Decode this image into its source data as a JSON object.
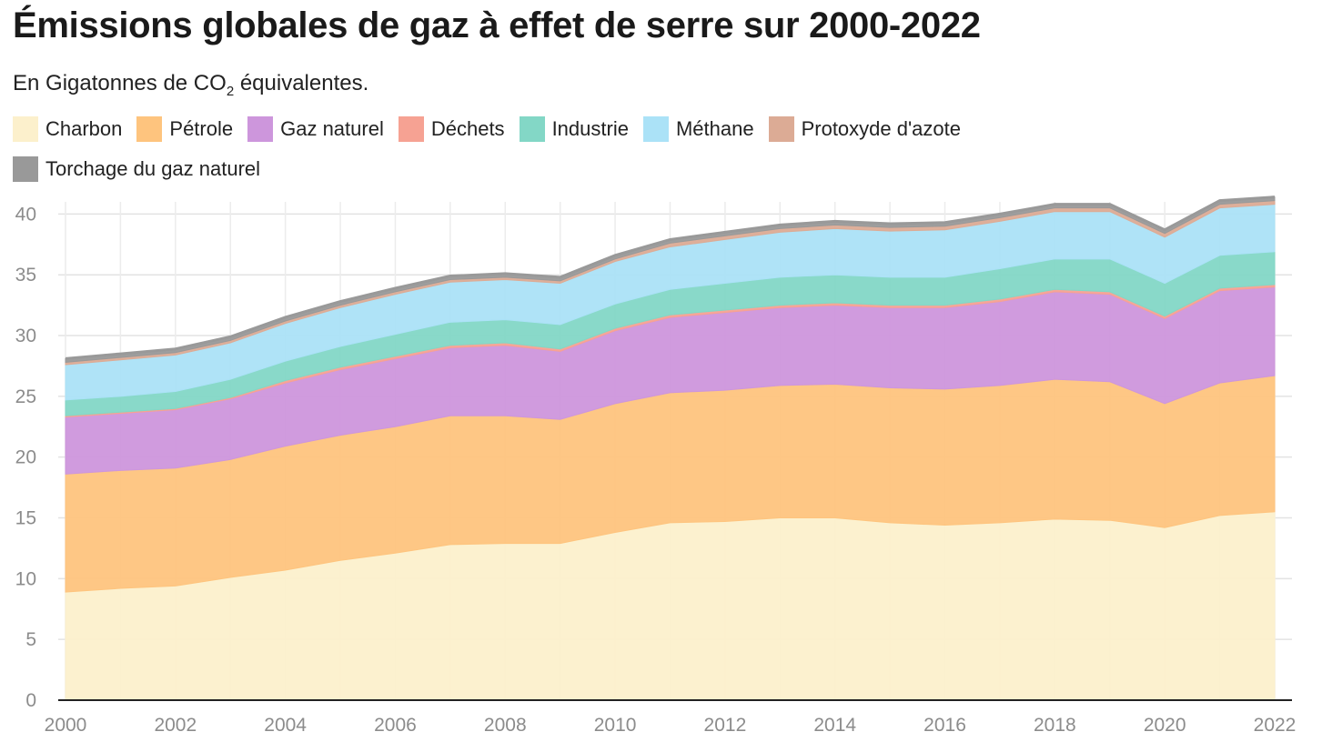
{
  "title": "Émissions globales de gaz à effet de serre sur 2000-2022",
  "subtitle": {
    "prefix": "En Gigatonnes de CO",
    "sub": "2",
    "suffix": " équivalentes."
  },
  "chart_data": {
    "type": "area",
    "stacked": true,
    "title": "Émissions globales de gaz à effet de serre sur 2000-2022",
    "subtitle": "En Gigatonnes de CO2 équivalentes.",
    "xlabel": "",
    "ylabel": "",
    "x": [
      2000,
      2001,
      2002,
      2003,
      2004,
      2005,
      2006,
      2007,
      2008,
      2009,
      2010,
      2011,
      2012,
      2013,
      2014,
      2015,
      2016,
      2017,
      2018,
      2019,
      2020,
      2021,
      2022
    ],
    "xlim": [
      2000,
      2022
    ],
    "ylim": [
      0,
      41
    ],
    "x_ticks": [
      "2000",
      "2002",
      "2004",
      "2006",
      "2008",
      "2010",
      "2012",
      "2014",
      "2016",
      "2018",
      "2020",
      "2022"
    ],
    "y_ticks": [
      "0",
      "5",
      "10",
      "15",
      "20",
      "25",
      "30",
      "35",
      "40"
    ],
    "grid": true,
    "legend_position": "top-left",
    "series": [
      {
        "name": "Charbon",
        "color": "#fcf0cc",
        "values": [
          8.9,
          9.2,
          9.4,
          10.1,
          10.7,
          11.5,
          12.1,
          12.8,
          12.9,
          12.9,
          13.8,
          14.6,
          14.7,
          15.0,
          15.0,
          14.6,
          14.4,
          14.6,
          14.9,
          14.8,
          14.2,
          15.2,
          15.5
        ]
      },
      {
        "name": "Pétrole",
        "color": "#fec47e",
        "values": [
          9.7,
          9.7,
          9.7,
          9.7,
          10.2,
          10.3,
          10.4,
          10.6,
          10.5,
          10.2,
          10.6,
          10.7,
          10.8,
          10.9,
          11.0,
          11.1,
          11.2,
          11.3,
          11.5,
          11.4,
          10.2,
          10.9,
          11.2
        ]
      },
      {
        "name": "Gaz naturel",
        "color": "#cd96dc",
        "values": [
          4.7,
          4.7,
          4.8,
          5.0,
          5.2,
          5.4,
          5.6,
          5.6,
          5.8,
          5.6,
          6.0,
          6.2,
          6.4,
          6.4,
          6.5,
          6.6,
          6.7,
          6.9,
          7.2,
          7.2,
          7.0,
          7.6,
          7.3
        ]
      },
      {
        "name": "Déchets",
        "color": "#f6a293",
        "values": [
          0.1,
          0.1,
          0.1,
          0.1,
          0.2,
          0.2,
          0.2,
          0.2,
          0.2,
          0.2,
          0.2,
          0.2,
          0.2,
          0.2,
          0.2,
          0.2,
          0.2,
          0.2,
          0.2,
          0.2,
          0.2,
          0.2,
          0.2
        ]
      },
      {
        "name": "Industrie",
        "color": "#83d7c6",
        "values": [
          1.3,
          1.3,
          1.4,
          1.5,
          1.6,
          1.7,
          1.8,
          1.9,
          1.9,
          2.0,
          2.0,
          2.1,
          2.2,
          2.3,
          2.3,
          2.3,
          2.3,
          2.5,
          2.5,
          2.7,
          2.7,
          2.7,
          2.7
        ]
      },
      {
        "name": "Méthane",
        "color": "#abe2f7",
        "values": [
          2.9,
          3.0,
          3.0,
          3.0,
          3.1,
          3.2,
          3.3,
          3.3,
          3.3,
          3.4,
          3.5,
          3.5,
          3.6,
          3.7,
          3.8,
          3.8,
          3.9,
          3.9,
          3.9,
          3.9,
          3.8,
          3.9,
          3.9
        ]
      },
      {
        "name": "Protoxyde d'azote",
        "color": "#dcab95",
        "values": [
          0.2,
          0.2,
          0.2,
          0.2,
          0.2,
          0.2,
          0.2,
          0.2,
          0.2,
          0.2,
          0.2,
          0.3,
          0.3,
          0.3,
          0.3,
          0.3,
          0.3,
          0.3,
          0.3,
          0.3,
          0.3,
          0.3,
          0.3
        ]
      },
      {
        "name": "Torchage du gaz naturel",
        "color": "#999999",
        "values": [
          0.3,
          0.3,
          0.3,
          0.3,
          0.3,
          0.3,
          0.3,
          0.3,
          0.3,
          0.3,
          0.3,
          0.3,
          0.3,
          0.3,
          0.3,
          0.3,
          0.3,
          0.3,
          0.3,
          0.3,
          0.3,
          0.3,
          0.3
        ]
      }
    ]
  }
}
